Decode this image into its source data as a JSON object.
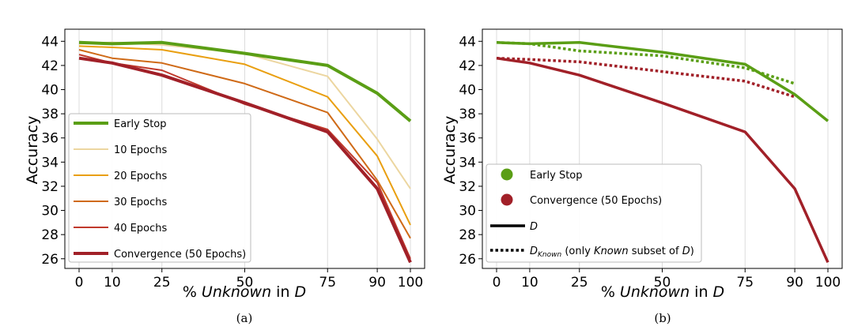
{
  "chart_data": [
    {
      "id": "a",
      "type": "line",
      "caption": "(a)",
      "xlabel_parts": [
        "% ",
        "Unknown",
        " in ",
        "D"
      ],
      "ylabel": "Accuracy",
      "x_ticks": [
        0,
        10,
        25,
        50,
        75,
        90,
        100
      ],
      "y_ticks": [
        26,
        28,
        30,
        32,
        34,
        36,
        38,
        40,
        42,
        44
      ],
      "ylim": [
        25.2,
        45.0
      ],
      "grid": "x",
      "legend_position": "lower-left",
      "series": [
        {
          "name": "10 Epochs",
          "color": "#ecd6a0",
          "width": 2,
          "x": [
            0,
            10,
            25,
            50,
            75,
            90,
            100
          ],
          "values": [
            43.8,
            43.9,
            43.7,
            43.0,
            41.1,
            35.9,
            31.8
          ]
        },
        {
          "name": "20 Epochs",
          "color": "#e99f10",
          "width": 2,
          "x": [
            0,
            10,
            25,
            50,
            75,
            90,
            100
          ],
          "values": [
            43.6,
            43.5,
            43.3,
            42.1,
            39.4,
            34.5,
            28.8
          ]
        },
        {
          "name": "30 Epochs",
          "color": "#cf6a17",
          "width": 2,
          "x": [
            0,
            10,
            25,
            50,
            75,
            90,
            100
          ],
          "values": [
            43.3,
            42.6,
            42.2,
            40.5,
            38.1,
            32.5,
            27.7
          ]
        },
        {
          "name": "40 Epochs",
          "color": "#c0392b",
          "width": 2,
          "x": [
            0,
            10,
            25,
            50,
            75,
            90,
            100
          ],
          "values": [
            42.9,
            42.2,
            41.6,
            38.8,
            36.7,
            32.3,
            26.0
          ]
        },
        {
          "name": "Convergence (50 Epochs)",
          "color": "#a12028",
          "width": 4,
          "x": [
            0,
            10,
            25,
            50,
            75,
            90,
            100
          ],
          "values": [
            42.6,
            42.2,
            41.2,
            38.9,
            36.5,
            31.8,
            25.7
          ]
        },
        {
          "name": "Early Stop",
          "color": "#5a9e15",
          "width": 4,
          "x": [
            0,
            10,
            25,
            50,
            75,
            90,
            100
          ],
          "values": [
            43.9,
            43.8,
            43.9,
            43.0,
            42.0,
            39.7,
            37.4
          ]
        }
      ],
      "legend": [
        {
          "label": "Early Stop",
          "color": "#5a9e15",
          "width": 4
        },
        {
          "label": "10 Epochs",
          "color": "#ecd6a0",
          "width": 2
        },
        {
          "label": "20 Epochs",
          "color": "#e99f10",
          "width": 2
        },
        {
          "label": "30 Epochs",
          "color": "#cf6a17",
          "width": 2
        },
        {
          "label": "40 Epochs",
          "color": "#c0392b",
          "width": 2
        },
        {
          "label": "Convergence (50 Epochs)",
          "color": "#a12028",
          "width": 4
        }
      ]
    },
    {
      "id": "b",
      "type": "line",
      "caption": "(b)",
      "xlabel_parts": [
        "% ",
        "Unknown",
        " in ",
        "D"
      ],
      "ylabel": "Accuracy",
      "x_ticks": [
        0,
        10,
        25,
        50,
        75,
        90,
        100
      ],
      "y_ticks": [
        26,
        28,
        30,
        32,
        34,
        36,
        38,
        40,
        42,
        44
      ],
      "ylim": [
        25.2,
        45.0
      ],
      "grid": "x",
      "legend_position": "lower-left",
      "series": [
        {
          "name": "Convergence D",
          "color": "#a12028",
          "width": 3.5,
          "dash": "solid",
          "x": [
            0,
            10,
            25,
            50,
            75,
            90,
            100
          ],
          "values": [
            42.6,
            42.2,
            41.2,
            38.9,
            36.5,
            31.8,
            25.7
          ]
        },
        {
          "name": "Convergence D_Known",
          "color": "#a12028",
          "width": 3.5,
          "dash": "dotted",
          "x": [
            0,
            10,
            25,
            50,
            75,
            90
          ],
          "values": [
            42.6,
            42.5,
            42.3,
            41.5,
            40.7,
            39.4
          ]
        },
        {
          "name": "Early Stop D_Known",
          "color": "#5a9e15",
          "width": 3.5,
          "dash": "dotted",
          "x": [
            0,
            10,
            25,
            50,
            75,
            90
          ],
          "values": [
            43.9,
            43.8,
            43.2,
            42.8,
            41.8,
            40.5
          ]
        },
        {
          "name": "Early Stop D",
          "color": "#5a9e15",
          "width": 3.5,
          "dash": "solid",
          "x": [
            0,
            10,
            25,
            50,
            75,
            90,
            100
          ],
          "values": [
            43.9,
            43.8,
            43.9,
            43.1,
            42.1,
            39.6,
            37.4
          ]
        }
      ],
      "legend_items": {
        "early_stop": {
          "label": "Early Stop",
          "color": "#5a9e15"
        },
        "convergence": {
          "label": "Convergence (50 Epochs)",
          "color": "#a12028"
        },
        "d_solid": {
          "label": "D"
        },
        "d_known": {
          "main": "D",
          "sub": "Known",
          "pre": " (only ",
          "italic": "Known",
          "post": " subset of ",
          "tail": "D",
          "close": ")"
        }
      }
    }
  ]
}
